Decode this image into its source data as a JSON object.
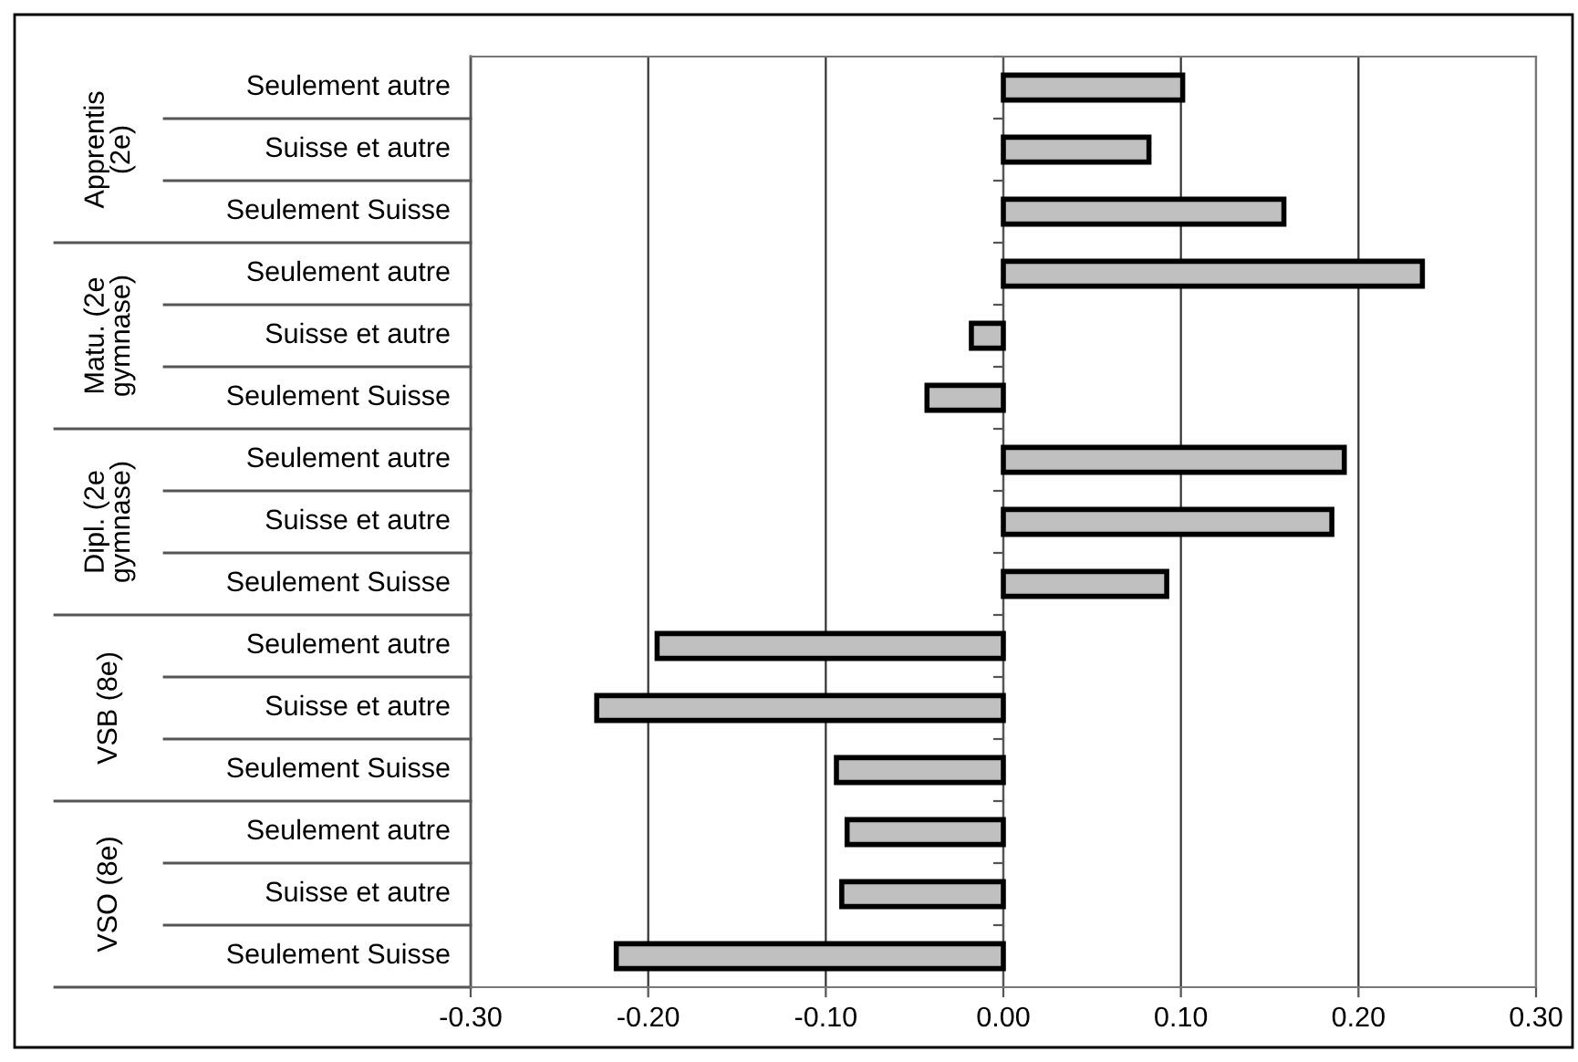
{
  "chart_data": {
    "type": "bar",
    "orientation": "horizontal",
    "categories": [
      "Seulement autre",
      "Suisse et autre",
      "Seulement Suisse",
      "Seulement autre",
      "Suisse et autre",
      "Seulement Suisse",
      "Seulement autre",
      "Suisse et autre",
      "Seulement Suisse",
      "Seulement autre",
      "Suisse et autre",
      "Seulement Suisse",
      "Seulement autre",
      "Suisse et autre",
      "Seulement Suisse"
    ],
    "values": [
      0.101,
      0.082,
      0.158,
      0.236,
      -0.018,
      -0.043,
      0.192,
      0.185,
      0.092,
      -0.195,
      -0.229,
      -0.094,
      -0.088,
      -0.091,
      -0.218
    ],
    "color": "#c0c0c0",
    "annotations": [
      "Apprentis\n(2e)",
      "Matu. (2e\ngymnase)",
      "Dipl. (2e\ngymnase)",
      "VSB (8e)",
      "VSO (8e)"
    ],
    "xlim": [
      -0.3,
      0.3
    ],
    "xticks": [
      {
        "value": -0.3,
        "label": "-0.30"
      },
      {
        "value": -0.2,
        "label": "-0.20"
      },
      {
        "value": -0.1,
        "label": "-0.10"
      },
      {
        "value": 0,
        "label": "0.00"
      },
      {
        "value": 0.1,
        "label": "0.10"
      },
      {
        "value": 0.2,
        "label": "0.20"
      },
      {
        "value": 0.3,
        "label": "0.30"
      }
    ],
    "grid": "x"
  }
}
